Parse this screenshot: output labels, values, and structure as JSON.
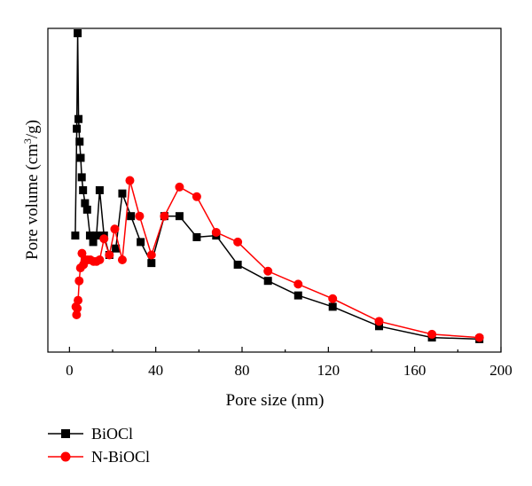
{
  "chart_data": {
    "type": "line",
    "xlabel": "Pore size (nm)",
    "ylabel_prefix": "Pore volume (cm",
    "ylabel_sup": "3",
    "ylabel_suffix": "/g)",
    "xlim": [
      -10,
      200
    ],
    "ylim": [
      0,
      1
    ],
    "x_ticks": [
      0,
      40,
      80,
      120,
      160,
      200
    ],
    "y_ticks": [],
    "grid": false,
    "legend_position": "bottom-left",
    "series": [
      {
        "name": "BiOCl",
        "color": "#000000",
        "marker": "square",
        "x": [
          2.7,
          3.4,
          3.8,
          4.2,
          4.7,
          5.2,
          5.7,
          6.3,
          7.2,
          8.2,
          9.5,
          11.0,
          12.5,
          14.0,
          16.0,
          18.5,
          21.5,
          24.5,
          28.5,
          33.0,
          38.0,
          44.0,
          51.0,
          59.0,
          68.0,
          78.0,
          92.0,
          106.0,
          122.0,
          143.5,
          168.0,
          190.0
        ],
        "y": [
          0.36,
          0.69,
          0.985,
          0.72,
          0.65,
          0.6,
          0.54,
          0.5,
          0.46,
          0.44,
          0.36,
          0.34,
          0.36,
          0.5,
          0.36,
          0.3,
          0.32,
          0.49,
          0.42,
          0.34,
          0.275,
          0.42,
          0.42,
          0.355,
          0.36,
          0.27,
          0.22,
          0.175,
          0.14,
          0.08,
          0.045,
          0.04
        ]
      },
      {
        "name": "N-BiOCl",
        "color": "#ff0000",
        "marker": "circle",
        "x": [
          3.0,
          3.3,
          3.6,
          4.0,
          4.5,
          5.1,
          5.8,
          6.5,
          7.5,
          8.5,
          9.7,
          11.2,
          12.5,
          14.0,
          16.0,
          18.5,
          21.0,
          24.5,
          28.0,
          32.5,
          38.0,
          44.0,
          51.0,
          59.0,
          68.0,
          78.0,
          92.0,
          106.0,
          122.0,
          143.5,
          168.0,
          190.0
        ],
        "y": [
          0.14,
          0.115,
          0.135,
          0.16,
          0.22,
          0.26,
          0.305,
          0.27,
          0.285,
          0.285,
          0.285,
          0.28,
          0.28,
          0.285,
          0.35,
          0.3,
          0.38,
          0.285,
          0.53,
          0.42,
          0.3,
          0.42,
          0.51,
          0.48,
          0.37,
          0.34,
          0.25,
          0.21,
          0.165,
          0.095,
          0.055,
          0.045
        ]
      }
    ]
  }
}
